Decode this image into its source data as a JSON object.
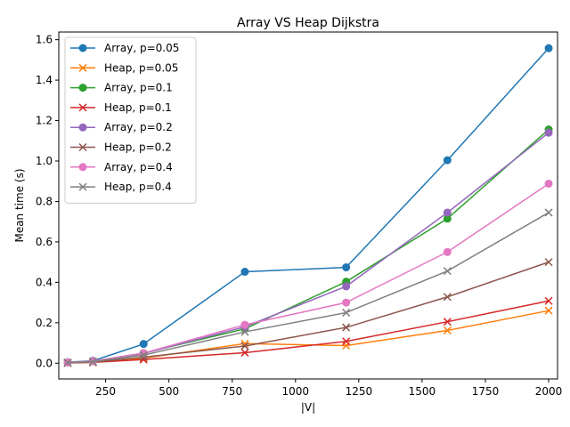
{
  "chart_data": {
    "type": "line",
    "title": "Array VS Heap Dijkstra",
    "xlabel": "|V|",
    "ylabel": "Mean time (s)",
    "xlim": [
      65,
      2035
    ],
    "ylim": [
      -0.078,
      1.638
    ],
    "xticks": [
      250,
      500,
      750,
      1000,
      1250,
      1500,
      1750,
      2000
    ],
    "yticks": [
      0.0,
      0.2,
      0.4,
      0.6,
      0.8,
      1.0,
      1.2,
      1.4,
      1.6
    ],
    "grid": false,
    "legend_position": "top-left",
    "x": [
      100,
      200,
      400,
      800,
      1200,
      1600,
      2000
    ],
    "series": [
      {
        "name": "Array, p=0.05",
        "color": "#1f77b4",
        "marker": "circle",
        "values": [
          0.005,
          0.012,
          0.095,
          0.452,
          0.474,
          1.004,
          1.558
        ]
      },
      {
        "name": "Heap, p=0.05",
        "color": "#ff7f0e",
        "marker": "x",
        "values": [
          0.002,
          0.005,
          0.025,
          0.097,
          0.087,
          0.162,
          0.26
        ]
      },
      {
        "name": "Array, p=0.1",
        "color": "#2ca02c",
        "marker": "circle",
        "values": [
          0.004,
          0.01,
          0.05,
          0.17,
          0.403,
          0.715,
          1.156
        ]
      },
      {
        "name": "Heap, p=0.1",
        "color": "#d62728",
        "marker": "x",
        "values": [
          0.001,
          0.004,
          0.018,
          0.052,
          0.108,
          0.205,
          0.308
        ]
      },
      {
        "name": "Array, p=0.2",
        "color": "#9467bd",
        "marker": "circle",
        "values": [
          0.004,
          0.01,
          0.048,
          0.18,
          0.38,
          0.745,
          1.14
        ]
      },
      {
        "name": "Heap, p=0.2",
        "color": "#8c564b",
        "marker": "x",
        "values": [
          0.002,
          0.005,
          0.03,
          0.085,
          0.177,
          0.328,
          0.5
        ]
      },
      {
        "name": "Array, p=0.4",
        "color": "#e377c2",
        "marker": "circle",
        "values": [
          0.004,
          0.01,
          0.05,
          0.19,
          0.3,
          0.55,
          0.888
        ]
      },
      {
        "name": "Heap, p=0.4",
        "color": "#7f7f7f",
        "marker": "x",
        "values": [
          0.003,
          0.008,
          0.04,
          0.155,
          0.25,
          0.456,
          0.745
        ]
      }
    ]
  }
}
